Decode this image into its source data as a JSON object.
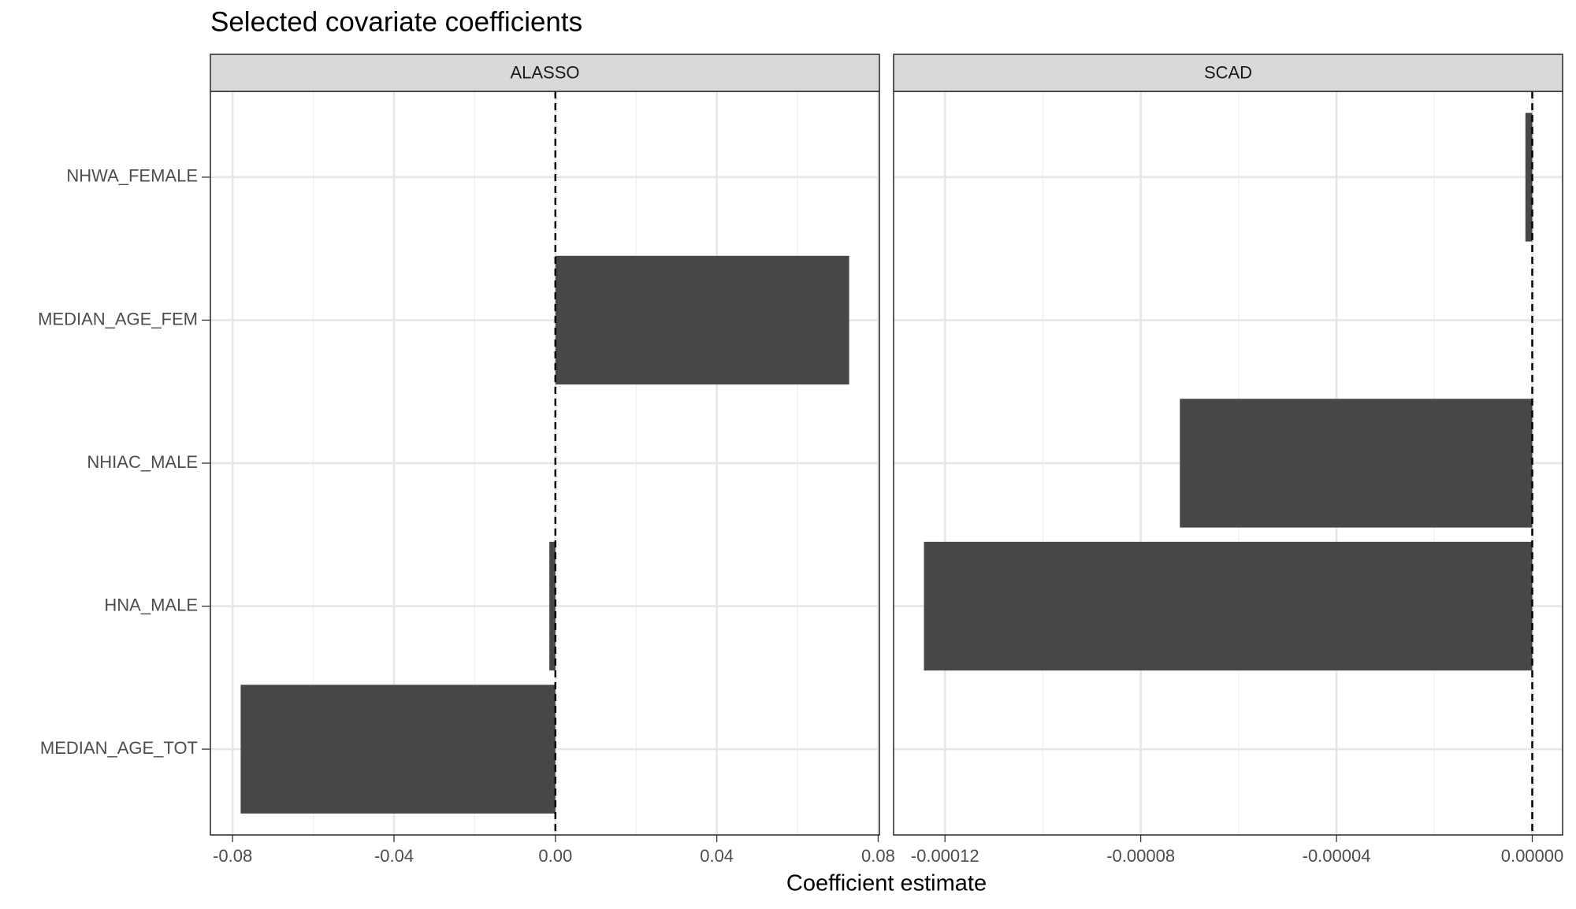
{
  "title": "Selected covariate coefficients",
  "xlabel": "Coefficient estimate",
  "categories": [
    "NHWA_FEMALE",
    "MEDIAN_AGE_FEM",
    "NHIAC_MALE",
    "HNA_MALE",
    "MEDIAN_AGE_TOT"
  ],
  "chart_data": [
    {
      "type": "bar",
      "orientation": "horizontal",
      "facet": "ALASSO",
      "values": [
        0,
        0.0728,
        0,
        -0.0015,
        -0.078
      ],
      "color": "#474747",
      "xlim": [
        -0.0855,
        0.0803
      ],
      "xticks": [
        -0.08,
        -0.04,
        {
          "value": 0,
          "label": "0.00"
        },
        0.04,
        0.08
      ],
      "vline": 0,
      "grid": true
    },
    {
      "type": "bar",
      "orientation": "horizontal",
      "facet": "SCAD",
      "values": [
        -1.4e-06,
        0,
        -7.2e-05,
        -0.0001243,
        0
      ],
      "color": "#474747",
      "xlim": [
        -0.0001305,
        6.2e-06
      ],
      "xticks": [
        -0.00012,
        -8e-05,
        -4e-05,
        {
          "value": 0,
          "label": "0.00000"
        }
      ],
      "vline": 0,
      "grid": true
    }
  ]
}
